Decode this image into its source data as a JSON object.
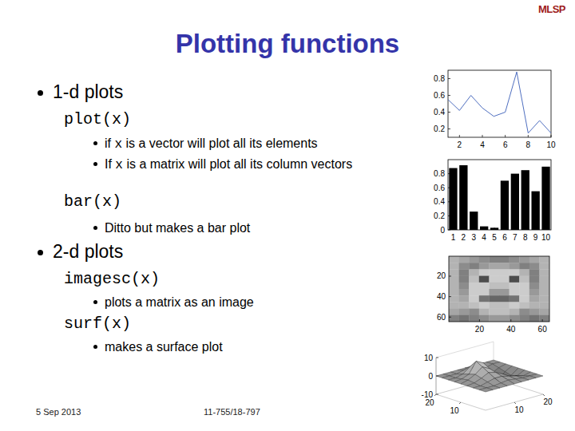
{
  "slide": {
    "title": "Plotting functions",
    "logo": "MLSP",
    "sections": [
      {
        "heading": "1-d plots",
        "items": [
          {
            "command": "plot(x)",
            "notes": [
              {
                "parts": [
                  "if ",
                  "x",
                  " is a vector will plot all its elements"
                ]
              },
              {
                "parts": [
                  "If ",
                  "x",
                  " is a matrix will plot all its column vectors"
                ]
              }
            ]
          },
          {
            "command": "bar(x)",
            "notes": [
              {
                "parts": [
                  "Ditto but makes a bar plot"
                ]
              }
            ]
          }
        ]
      },
      {
        "heading": "2-d plots",
        "items": [
          {
            "command": "imagesc(x)",
            "notes": [
              {
                "parts": [
                  "plots a matrix as an image"
                ]
              }
            ]
          },
          {
            "command": "surf(x)",
            "notes": [
              {
                "parts": [
                  "makes a surface plot"
                ]
              }
            ]
          }
        ]
      }
    ],
    "footer": {
      "date": "5 Sep 2013",
      "course": "11-755/18-797"
    }
  },
  "chart_data": [
    {
      "type": "line",
      "x": [
        1,
        2,
        3,
        4,
        5,
        6,
        7,
        8,
        9,
        10
      ],
      "values": [
        0.55,
        0.42,
        0.6,
        0.45,
        0.35,
        0.4,
        0.88,
        0.15,
        0.3,
        0.15
      ],
      "color": "#4f6fc0",
      "xlim": [
        1,
        10
      ],
      "xticks": [
        2,
        4,
        6,
        8,
        10
      ],
      "ylim": [
        0.1,
        0.9
      ],
      "yticks": [
        0.2,
        0.4,
        0.6,
        0.8
      ],
      "grid": false
    },
    {
      "type": "bar",
      "categories": [
        "1",
        "2",
        "3",
        "4",
        "5",
        "6",
        "7",
        "8",
        "9",
        "10"
      ],
      "values": [
        0.88,
        0.92,
        0.26,
        0.05,
        0.03,
        0.7,
        0.8,
        0.85,
        0.55,
        0.9
      ],
      "color": "#000000",
      "ylim": [
        0,
        1
      ],
      "yticks": [
        0,
        0.2,
        0.4,
        0.6,
        0.8
      ],
      "grid": false
    },
    {
      "type": "heatmap",
      "xlim": [
        0.5,
        64.5
      ],
      "ylim": [
        0.5,
        64.5
      ],
      "xticks": [
        20,
        40,
        60
      ],
      "yticks": [
        20,
        40,
        60
      ],
      "color_range": [
        0,
        1
      ],
      "cells": [
        [
          0.7,
          0.65,
          0.6,
          0.55,
          0.5,
          0.5,
          0.55,
          0.6,
          0.65,
          0.7
        ],
        [
          0.7,
          0.55,
          0.5,
          0.6,
          0.65,
          0.65,
          0.6,
          0.5,
          0.55,
          0.7
        ],
        [
          0.7,
          0.5,
          0.7,
          0.8,
          0.8,
          0.8,
          0.8,
          0.7,
          0.5,
          0.7
        ],
        [
          0.7,
          0.5,
          0.75,
          0.3,
          0.8,
          0.8,
          0.3,
          0.75,
          0.5,
          0.7
        ],
        [
          0.7,
          0.55,
          0.8,
          0.8,
          0.75,
          0.75,
          0.8,
          0.8,
          0.55,
          0.7
        ],
        [
          0.7,
          0.6,
          0.8,
          0.8,
          0.6,
          0.6,
          0.8,
          0.8,
          0.6,
          0.7
        ],
        [
          0.7,
          0.65,
          0.8,
          0.45,
          0.4,
          0.4,
          0.45,
          0.8,
          0.65,
          0.7
        ],
        [
          0.7,
          0.7,
          0.75,
          0.8,
          0.75,
          0.75,
          0.8,
          0.75,
          0.7,
          0.7
        ],
        [
          0.65,
          0.6,
          0.55,
          0.7,
          0.75,
          0.75,
          0.7,
          0.55,
          0.6,
          0.65
        ],
        [
          0.5,
          0.45,
          0.5,
          0.55,
          0.6,
          0.6,
          0.55,
          0.5,
          0.45,
          0.5
        ]
      ]
    },
    {
      "type": "surface",
      "x": [
        0,
        2.5,
        5,
        7.5,
        10,
        12.5,
        15,
        17.5,
        20
      ],
      "y": [
        0,
        2.5,
        5,
        7.5,
        10,
        12.5,
        15,
        17.5,
        20
      ],
      "z": [
        [
          0,
          0,
          0,
          0,
          0,
          0,
          0,
          0,
          0
        ],
        [
          0,
          0,
          0,
          0.5,
          1,
          0.5,
          0,
          0,
          0
        ],
        [
          0,
          0,
          1,
          2,
          2,
          1,
          0,
          -1,
          0
        ],
        [
          0,
          0.5,
          2,
          4,
          3,
          1,
          -2,
          -2,
          0
        ],
        [
          0,
          1,
          3,
          6,
          4,
          0,
          -4,
          -3,
          0
        ],
        [
          0,
          0.5,
          2,
          8,
          6,
          -2,
          -6,
          -2,
          0
        ],
        [
          0,
          0,
          1,
          4,
          3,
          -1,
          -3,
          -1,
          0
        ],
        [
          0,
          0,
          0,
          1,
          1,
          0,
          -1,
          0,
          0
        ],
        [
          0,
          0,
          0,
          0,
          0,
          0,
          0,
          0,
          0
        ]
      ],
      "xlim": [
        0,
        20
      ],
      "ylim": [
        0,
        20
      ],
      "zlim": [
        -10,
        10
      ],
      "xticks": [
        10,
        20
      ],
      "yticks": [
        10,
        20
      ],
      "zticks": [
        -10,
        0,
        10
      ]
    }
  ]
}
